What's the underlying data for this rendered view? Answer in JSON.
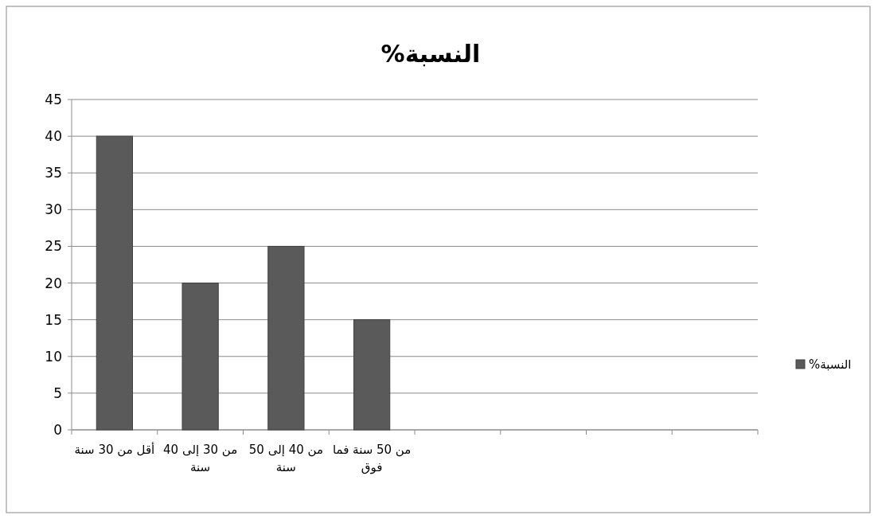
{
  "chart_data": {
    "type": "bar",
    "title": "%النسبة",
    "categories": [
      "أقل من 30 سنة",
      "من 30 إلى 40 سنة",
      "من 40 إلى 50 سنة",
      "من 50 سنة فما فوق",
      null,
      null,
      null,
      null
    ],
    "series": [
      {
        "name": "%النسبة",
        "color": "#5a5a5a",
        "values": [
          40,
          20,
          25,
          15,
          null,
          null,
          null,
          null
        ]
      }
    ],
    "ylim": [
      0,
      45
    ],
    "yticks": [
      0,
      5,
      10,
      15,
      20,
      25,
      30,
      35,
      40,
      45
    ],
    "grid": "y",
    "legend": "right"
  }
}
